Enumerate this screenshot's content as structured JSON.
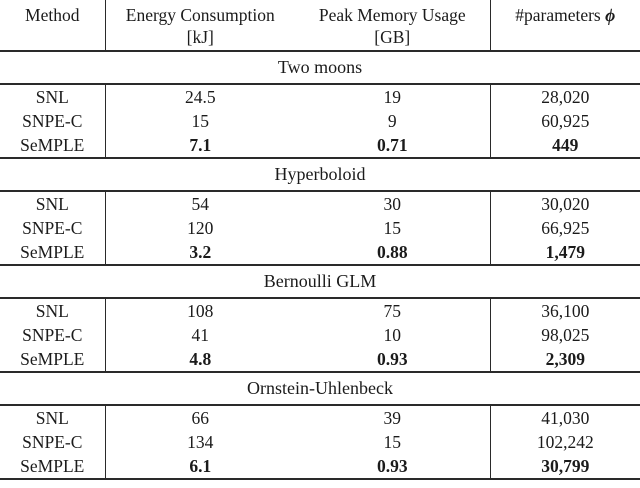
{
  "header": {
    "method": "Method",
    "energy_label": "Energy Consumption",
    "energy_unit": "[kJ]",
    "memory_label": "Peak Memory Usage",
    "memory_unit": "[GB]",
    "params_label": "#parameters",
    "params_symbol": "ϕ"
  },
  "sections": [
    {
      "title": "Two moons",
      "rows": [
        {
          "method": "SNL",
          "energy": "24.5",
          "memory": "19",
          "params": "28,020"
        },
        {
          "method": "SNPE-C",
          "energy": "15",
          "memory": "9",
          "params": "60,925"
        },
        {
          "method": "SeMPLE",
          "energy": "7.1",
          "memory": "0.71",
          "params": "449"
        }
      ]
    },
    {
      "title": "Hyperboloid",
      "rows": [
        {
          "method": "SNL",
          "energy": "54",
          "memory": "30",
          "params": "30,020"
        },
        {
          "method": "SNPE-C",
          "energy": "120",
          "memory": "15",
          "params": "66,925"
        },
        {
          "method": "SeMPLE",
          "energy": "3.2",
          "memory": "0.88",
          "params": "1,479"
        }
      ]
    },
    {
      "title": "Bernoulli GLM",
      "rows": [
        {
          "method": "SNL",
          "energy": "108",
          "memory": "75",
          "params": "36,100"
        },
        {
          "method": "SNPE-C",
          "energy": "41",
          "memory": "10",
          "params": "98,025"
        },
        {
          "method": "SeMPLE",
          "energy": "4.8",
          "memory": "0.93",
          "params": "2,309"
        }
      ]
    },
    {
      "title": "Ornstein-Uhlenbeck",
      "rows": [
        {
          "method": "SNL",
          "energy": "66",
          "memory": "39",
          "params": "41,030"
        },
        {
          "method": "SNPE-C",
          "energy": "134",
          "memory": "15",
          "params": "102,242"
        },
        {
          "method": "SeMPLE",
          "energy": "6.1",
          "memory": "0.93",
          "params": "30,799"
        }
      ]
    }
  ]
}
